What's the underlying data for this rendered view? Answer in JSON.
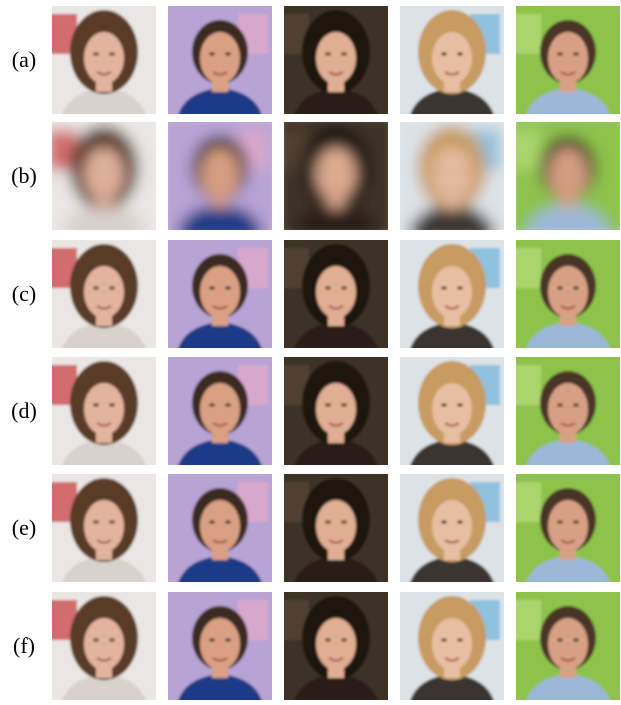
{
  "figure": {
    "row_labels": [
      "(a)",
      "(b)",
      "(c)",
      "(d)",
      "(e)",
      "(f)"
    ]
  }
}
